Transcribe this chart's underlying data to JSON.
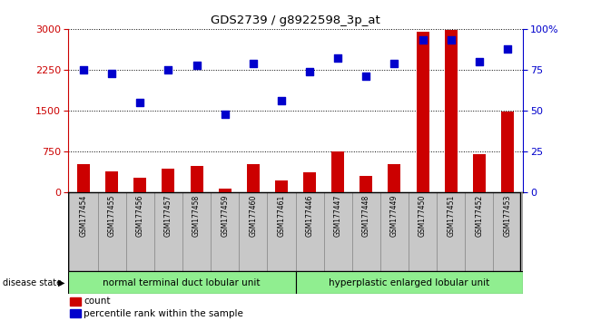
{
  "title": "GDS2739 / g8922598_3p_at",
  "samples": [
    "GSM177454",
    "GSM177455",
    "GSM177456",
    "GSM177457",
    "GSM177458",
    "GSM177459",
    "GSM177460",
    "GSM177461",
    "GSM177446",
    "GSM177447",
    "GSM177448",
    "GSM177449",
    "GSM177450",
    "GSM177451",
    "GSM177452",
    "GSM177453"
  ],
  "counts": [
    520,
    390,
    270,
    440,
    490,
    75,
    530,
    230,
    380,
    760,
    300,
    530,
    2950,
    2980,
    700,
    1480
  ],
  "percentiles": [
    75,
    73,
    55,
    75,
    78,
    48,
    79,
    56,
    74,
    82,
    71,
    79,
    93,
    93,
    80,
    88
  ],
  "group1_label": "normal terminal duct lobular unit",
  "group2_label": "hyperplastic enlarged lobular unit",
  "group1_count": 8,
  "group2_count": 8,
  "bar_color": "#cc0000",
  "dot_color": "#0000cc",
  "left_axis_color": "#cc0000",
  "right_axis_color": "#0000cc",
  "ylim_left": [
    0,
    3000
  ],
  "ylim_right": [
    0,
    100
  ],
  "yticks_left": [
    0,
    750,
    1500,
    2250,
    3000
  ],
  "yticks_right": [
    0,
    25,
    50,
    75,
    100
  ],
  "group1_color": "#90ee90",
  "group2_color": "#90ee90",
  "tick_bg_color": "#c8c8c8",
  "bar_width": 0.45
}
